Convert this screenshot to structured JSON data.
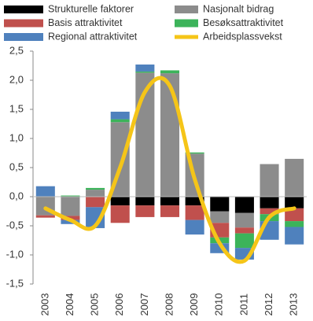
{
  "chart_data": {
    "type": "bar",
    "stacked": true,
    "categories": [
      "2003",
      "2004",
      "2005",
      "2006",
      "2007",
      "2008",
      "2009",
      "2010",
      "2011",
      "2012",
      "2013"
    ],
    "series": [
      {
        "name": "Strukturelle faktorer",
        "color": "#000000",
        "values": [
          0,
          0,
          0,
          -0.15,
          -0.15,
          -0.15,
          -0.15,
          -0.25,
          -0.28,
          -0.2,
          -0.2
        ]
      },
      {
        "name": "Nasjonalt bidrag",
        "color": "#8c8c8c",
        "values": [
          -0.32,
          -0.33,
          0.12,
          1.28,
          2.13,
          2.12,
          0.74,
          -0.2,
          -0.25,
          0.56,
          0.65
        ]
      },
      {
        "name": "Basis attraktivitet",
        "color": "#c0504d",
        "values": [
          -0.04,
          -0.07,
          -0.18,
          -0.3,
          -0.2,
          -0.2,
          -0.25,
          -0.25,
          -0.1,
          -0.1,
          -0.22
        ]
      },
      {
        "name": "Besøksattraktivitet",
        "color": "#3cb35a",
        "values": [
          0,
          0.02,
          0.03,
          0.05,
          0.02,
          0.05,
          0.02,
          -0.1,
          -0.25,
          -0.12,
          -0.1
        ]
      },
      {
        "name": "Regional attraktivitet",
        "color": "#4f81bd",
        "values": [
          0.18,
          -0.07,
          -0.36,
          0.13,
          0.12,
          0,
          -0.25,
          -0.17,
          -0.2,
          -0.32,
          -0.3
        ]
      },
      {
        "name": "Arbeidsplassvekst",
        "type": "line",
        "color": "#f5c518",
        "values": [
          -0.2,
          -0.4,
          -0.5,
          0.5,
          1.8,
          1.9,
          0.3,
          -0.8,
          -1.1,
          -0.35,
          -0.2
        ]
      }
    ],
    "ylim": [
      -1.5,
      2.5
    ],
    "yticks": [
      {
        "value": 2.5,
        "label": "2,5"
      },
      {
        "value": 2,
        "label": "2,0"
      },
      {
        "value": 1.5,
        "label": "1,5"
      },
      {
        "value": 1,
        "label": "1,0"
      },
      {
        "value": 0.5,
        "label": "0,5"
      },
      {
        "value": 0,
        "label": "0,0"
      },
      {
        "value": -0.5,
        "label": "-0,5"
      },
      {
        "value": -1,
        "label": "-1,0"
      },
      {
        "value": -1.5,
        "label": "-1,5"
      }
    ],
    "grid": false
  }
}
